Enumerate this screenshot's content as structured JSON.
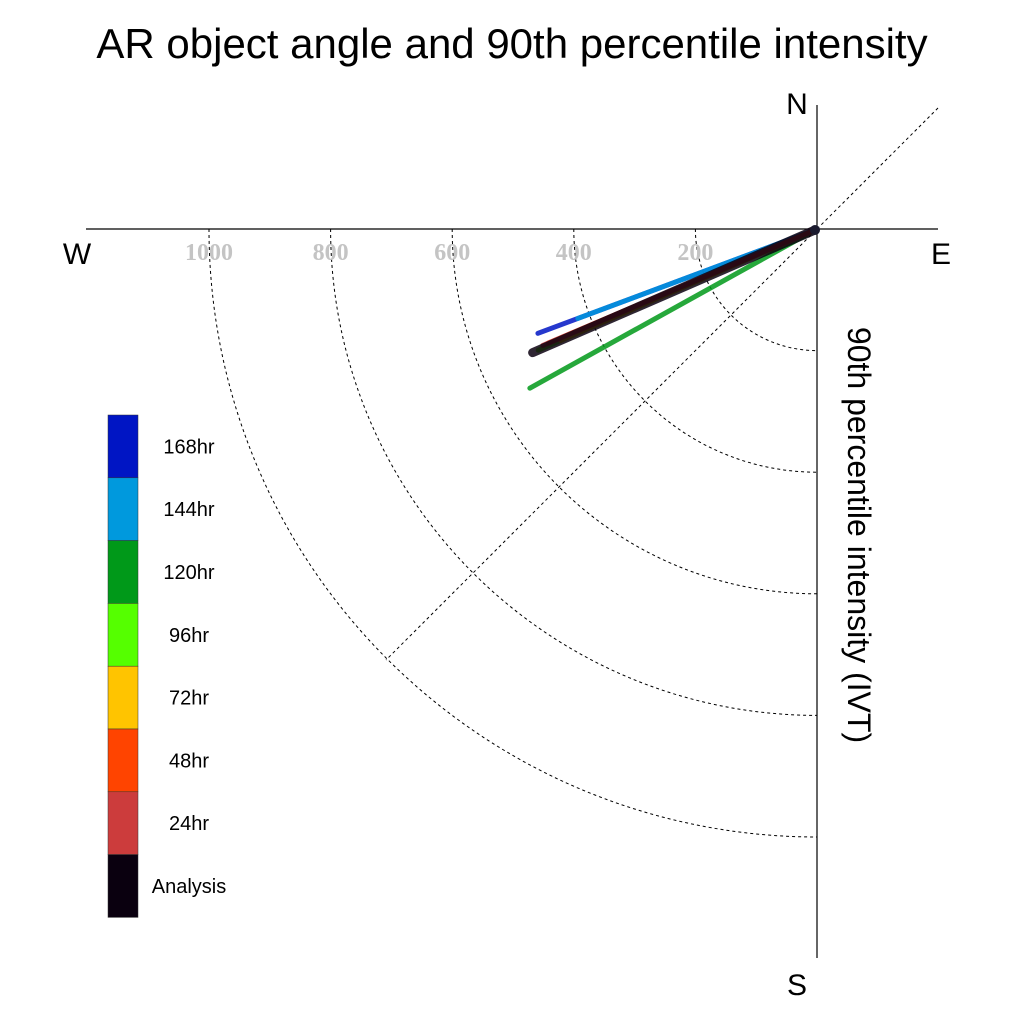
{
  "chart_data": {
    "type": "line",
    "title": "AR object angle and 90th percentile intensity",
    "compass": {
      "north": "N",
      "south": "S",
      "west": "W",
      "east": "E"
    },
    "ylabel": "90th percentile intensity (IVT)",
    "radial_ticks": [
      200,
      400,
      600,
      800,
      1000
    ],
    "radial_range": [
      0,
      1000
    ],
    "grid": true,
    "legend_position": "left",
    "series": [
      {
        "name": "168hr",
        "color": "#0015c4",
        "angle_deg_from_west": 20.5,
        "intensity": 490
      },
      {
        "name": "144hr",
        "color": "#0099dd",
        "angle_deg_from_west": 20.5,
        "intensity": 420
      },
      {
        "name": "120hr",
        "color": "#009919",
        "angle_deg_from_west": 29.0,
        "intensity": 540
      },
      {
        "name": "96hr",
        "color": "#55ff00",
        "angle_deg_from_west": 23.5,
        "intensity": 500
      },
      {
        "name": "72hr",
        "color": "#ffc400",
        "angle_deg_from_west": 23.5,
        "intensity": 460
      },
      {
        "name": "48hr",
        "color": "#ff4400",
        "angle_deg_from_west": 23.0,
        "intensity": 480
      },
      {
        "name": "24hr",
        "color": "#cc3c3c",
        "angle_deg_from_west": 23.0,
        "intensity": 490
      },
      {
        "name": "Analysis",
        "color": "#0a000f",
        "angle_deg_from_west": 23.5,
        "intensity": 510
      }
    ]
  }
}
